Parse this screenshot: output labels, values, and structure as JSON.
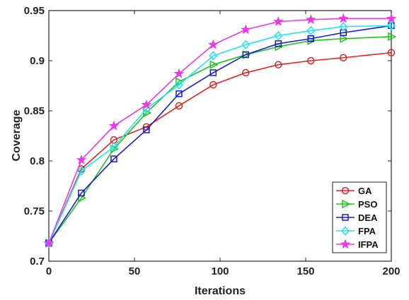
{
  "chart_data": {
    "type": "line",
    "xlabel": "Iterations",
    "ylabel": "Coverage",
    "xlim": [
      0,
      200
    ],
    "ylim": [
      0.7,
      0.95
    ],
    "xticks": [
      0,
      50,
      100,
      150,
      200
    ],
    "yticks": [
      0.7,
      0.75,
      0.8,
      0.85,
      0.9,
      0.95
    ],
    "xtick_labels": [
      "0",
      "50",
      "100",
      "150",
      "200"
    ],
    "ytick_labels": [
      "0.7",
      "0.75",
      "0.8",
      "0.85",
      "0.9",
      "0.95"
    ],
    "grid": false,
    "legend_position": "bottom-right",
    "x": [
      0,
      19,
      38,
      57,
      76,
      96,
      115,
      134,
      153,
      172,
      200
    ],
    "series": [
      {
        "name": "GA",
        "color": "#e8201f",
        "marker": "circle",
        "values": [
          0.718,
          0.792,
          0.821,
          0.834,
          0.855,
          0.876,
          0.888,
          0.896,
          0.9,
          0.903,
          0.908
        ]
      },
      {
        "name": "PSO",
        "color": "#1ec31e",
        "marker": "triangle-right",
        "values": [
          0.718,
          0.763,
          0.812,
          0.848,
          0.879,
          0.896,
          0.906,
          0.914,
          0.92,
          0.922,
          0.924
        ]
      },
      {
        "name": "DEA",
        "color": "#1a1ac8",
        "marker": "square",
        "values": [
          0.718,
          0.768,
          0.802,
          0.831,
          0.867,
          0.888,
          0.906,
          0.917,
          0.922,
          0.928,
          0.935
        ]
      },
      {
        "name": "FPA",
        "color": "#1ee6f0",
        "marker": "diamond",
        "values": [
          0.718,
          0.79,
          0.814,
          0.852,
          0.876,
          0.905,
          0.916,
          0.925,
          0.93,
          0.934,
          0.935
        ]
      },
      {
        "name": "IFPA",
        "color": "#e63ce6",
        "marker": "star",
        "values": [
          0.718,
          0.801,
          0.835,
          0.856,
          0.887,
          0.916,
          0.931,
          0.939,
          0.941,
          0.942,
          0.942
        ]
      }
    ]
  }
}
